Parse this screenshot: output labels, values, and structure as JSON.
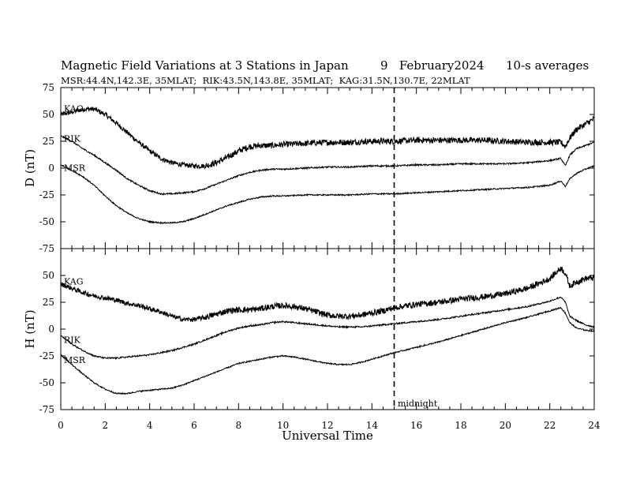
{
  "header": {
    "title": "Magnetic Field Variations at 3 Stations in Japan",
    "date": "9   February2024",
    "averaging": "10-s averages",
    "stations_line": "MSR:44.4N,142.3E, 35MLAT;  RIK:43.5N,143.8E, 35MLAT;  KAG:31.5N,130.7E, 22MLAT"
  },
  "chart_data": [
    {
      "type": "line",
      "panel": "top",
      "ylabel": "D (nT)",
      "ylim": [
        -75,
        75
      ],
      "yticks": [
        75,
        50,
        25,
        0,
        -25,
        -50,
        -75
      ],
      "xlim": [
        0,
        24
      ],
      "series": [
        {
          "name": "KAG",
          "x": [
            0,
            0.5,
            1,
            1.5,
            2,
            2.5,
            3,
            3.5,
            4,
            4.5,
            5,
            5.5,
            6,
            6.5,
            7,
            7.5,
            8,
            8.5,
            9,
            9.5,
            10,
            11,
            12,
            13,
            14,
            15,
            16,
            17,
            18,
            19,
            20,
            21,
            22,
            22.5,
            22.7,
            22.9,
            23.2,
            23.6,
            24
          ],
          "y": [
            50,
            52,
            55,
            55,
            50,
            42,
            33,
            24,
            16,
            9,
            5,
            3,
            2,
            2,
            5,
            10,
            16,
            20,
            21,
            21,
            22,
            23,
            24,
            24,
            25,
            25,
            26,
            26,
            26,
            26,
            25,
            24,
            24,
            24,
            20,
            28,
            36,
            41,
            46
          ]
        },
        {
          "name": "RIK",
          "x": [
            0,
            0.5,
            1,
            1.5,
            2,
            2.5,
            3,
            3.5,
            4,
            4.5,
            5,
            5.5,
            6,
            6.5,
            7,
            7.5,
            8,
            8.5,
            9,
            9.5,
            10,
            11,
            12,
            13,
            14,
            15,
            16,
            17,
            18,
            19,
            20,
            21,
            22,
            22.5,
            22.7,
            22.9,
            23.2,
            23.6,
            24
          ],
          "y": [
            30,
            25,
            18,
            12,
            5,
            -2,
            -10,
            -16,
            -21,
            -24,
            -24,
            -23,
            -22,
            -19,
            -15,
            -11,
            -7,
            -4,
            -2,
            -1,
            -1,
            0,
            1,
            1,
            2,
            2,
            3,
            3,
            4,
            4,
            4,
            5,
            7,
            9,
            2,
            12,
            18,
            21,
            24
          ]
        },
        {
          "name": "MSR",
          "x": [
            0,
            0.5,
            1,
            1.5,
            2,
            2.5,
            3,
            3.5,
            4,
            4.5,
            5,
            5.5,
            6,
            6.5,
            7,
            7.5,
            8,
            8.5,
            9,
            9.5,
            10,
            11,
            12,
            13,
            14,
            15,
            16,
            17,
            18,
            19,
            20,
            21,
            22,
            22.5,
            22.7,
            22.9,
            23.2,
            23.6,
            24
          ],
          "y": [
            3,
            -2,
            -8,
            -16,
            -26,
            -35,
            -42,
            -47,
            -50,
            -51,
            -51,
            -50,
            -47,
            -43,
            -39,
            -35,
            -32,
            -29,
            -27,
            -26,
            -26,
            -25,
            -25,
            -25,
            -24,
            -24,
            -23,
            -22,
            -21,
            -20,
            -19,
            -18,
            -16,
            -12,
            -17,
            -10,
            -5,
            -1,
            2
          ]
        }
      ]
    },
    {
      "type": "line",
      "panel": "bottom",
      "ylabel": "H (nT)",
      "ylim": [
        -75,
        75
      ],
      "yticks": [
        50,
        25,
        0,
        -25,
        -50,
        -75
      ],
      "xlabel": "Universal Time",
      "xlim": [
        0,
        24
      ],
      "xticks": [
        0,
        2,
        4,
        6,
        8,
        10,
        12,
        14,
        16,
        18,
        20,
        22,
        24
      ],
      "series": [
        {
          "name": "KAG",
          "x": [
            0,
            0.5,
            1,
            1.5,
            2,
            2.5,
            3,
            3.5,
            4,
            4.5,
            5,
            5.5,
            6,
            6.5,
            7,
            7.5,
            8,
            8.5,
            9,
            9.5,
            10,
            10.5,
            11,
            11.5,
            12,
            12.5,
            13,
            13.5,
            14,
            14.5,
            15,
            16,
            17,
            18,
            19,
            20,
            21,
            22,
            22.5,
            22.7,
            22.9,
            23.2,
            23.6,
            24
          ],
          "y": [
            42,
            38,
            34,
            31,
            29,
            27,
            24,
            22,
            19,
            16,
            12,
            9,
            9,
            11,
            14,
            17,
            18,
            18,
            19,
            21,
            22,
            21,
            19,
            16,
            13,
            12,
            12,
            13,
            15,
            17,
            20,
            23,
            25,
            28,
            30,
            33,
            38,
            47,
            57,
            52,
            40,
            44,
            47,
            48
          ]
        },
        {
          "name": "RIK",
          "x": [
            0,
            0.5,
            1,
            1.5,
            2,
            2.5,
            3,
            3.5,
            4,
            4.5,
            5,
            5.5,
            6,
            6.5,
            7,
            7.5,
            8,
            8.5,
            9,
            9.5,
            10,
            10.5,
            11,
            11.5,
            12,
            12.5,
            13,
            13.5,
            14,
            14.5,
            15,
            16,
            17,
            18,
            19,
            20,
            21,
            22,
            22.5,
            22.7,
            22.9,
            23.2,
            23.6,
            24
          ],
          "y": [
            -6,
            -14,
            -20,
            -25,
            -27,
            -27,
            -26,
            -25,
            -24,
            -22,
            -20,
            -17,
            -14,
            -10,
            -6,
            -2,
            1,
            3,
            4,
            6,
            7,
            6,
            5,
            4,
            3,
            2,
            2,
            2,
            3,
            4,
            5,
            7,
            9,
            12,
            15,
            18,
            21,
            26,
            30,
            25,
            12,
            8,
            4,
            2
          ]
        },
        {
          "name": "MSR",
          "x": [
            0,
            0.5,
            1,
            1.5,
            2,
            2.5,
            3,
            3.5,
            4,
            4.5,
            5,
            5.5,
            6,
            6.5,
            7,
            7.5,
            8,
            8.5,
            9,
            9.5,
            10,
            10.5,
            11,
            11.5,
            12,
            12.5,
            13,
            13.5,
            14,
            14.5,
            15,
            16,
            17,
            18,
            19,
            20,
            21,
            22,
            22.5,
            22.7,
            22.9,
            23.2,
            23.6,
            24
          ],
          "y": [
            -24,
            -33,
            -42,
            -50,
            -56,
            -60,
            -60,
            -58,
            -57,
            -56,
            -55,
            -52,
            -48,
            -44,
            -40,
            -36,
            -32,
            -30,
            -28,
            -26,
            -25,
            -26,
            -28,
            -30,
            -32,
            -33,
            -33,
            -31,
            -28,
            -25,
            -22,
            -17,
            -12,
            -6,
            0,
            6,
            11,
            17,
            20,
            15,
            6,
            1,
            -1,
            -2
          ]
        }
      ]
    }
  ],
  "markers": {
    "midnight_label": "midnight",
    "midnight_ut": 15
  }
}
